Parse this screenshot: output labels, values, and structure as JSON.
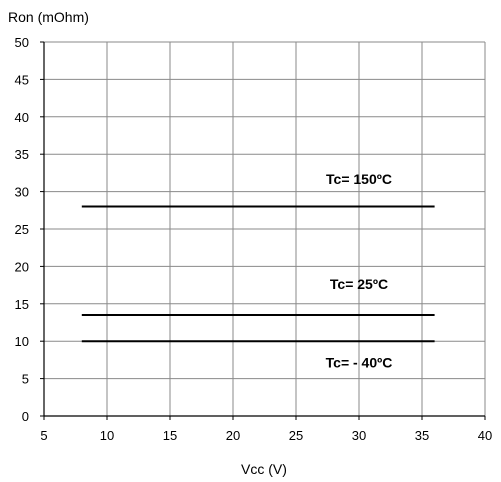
{
  "chart_data": {
    "type": "line",
    "title": "",
    "xlabel": "Vcc (V)",
    "ylabel": "Ron (mOhm)",
    "xlim": [
      5,
      40
    ],
    "ylim": [
      0,
      50
    ],
    "x_ticks": [
      5,
      10,
      15,
      20,
      25,
      30,
      35,
      40
    ],
    "y_ticks": [
      0,
      5,
      10,
      15,
      20,
      25,
      30,
      35,
      40,
      45,
      50
    ],
    "grid": true,
    "series": [
      {
        "label_id": "t150",
        "color": "#000000",
        "x": [
          8,
          36
        ],
        "y": [
          28,
          28
        ]
      },
      {
        "label_id": "t25",
        "color": "#000000",
        "x": [
          8,
          36
        ],
        "y": [
          13.5,
          13.5
        ]
      },
      {
        "label_id": "tm40",
        "color": "#000000",
        "x": [
          8,
          36
        ],
        "y": [
          10,
          10
        ]
      }
    ],
    "annotations": [
      {
        "id": "t150",
        "text": "Tc= 150ºC",
        "x": 30,
        "y": 31
      },
      {
        "id": "t25",
        "text": "Tc= 25ºC",
        "x": 30,
        "y": 17
      },
      {
        "id": "tm40",
        "text": "Tc= - 40ºC",
        "x": 30,
        "y": 6.5
      }
    ]
  }
}
